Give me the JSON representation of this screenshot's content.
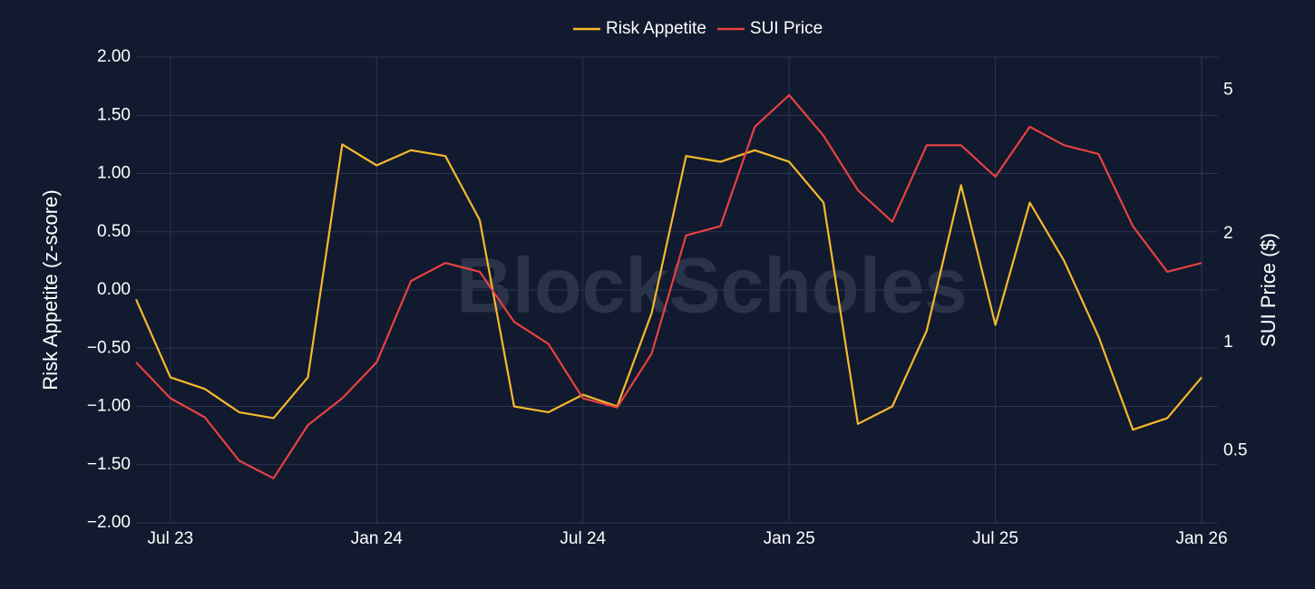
{
  "chart_data": {
    "type": "line",
    "watermark": "BlockScholes",
    "x": [
      "2023-06",
      "2023-07",
      "2023-08",
      "2023-09",
      "2023-10",
      "2023-11",
      "2023-12",
      "2024-01",
      "2024-02",
      "2024-03",
      "2024-04",
      "2024-05",
      "2024-06",
      "2024-07",
      "2024-08",
      "2024-09",
      "2024-10",
      "2024-11",
      "2024-12",
      "2025-01",
      "2025-02",
      "2025-03",
      "2025-04",
      "2025-05",
      "2025-06",
      "2025-07",
      "2025-08",
      "2025-09",
      "2025-10",
      "2025-11",
      "2025-12",
      "2026-01"
    ],
    "series": [
      {
        "name": "Risk Appetite",
        "color": "#f6b92b",
        "axis": "y",
        "values": [
          -0.08,
          -0.75,
          -0.85,
          -1.05,
          -1.1,
          -0.75,
          1.25,
          1.07,
          1.2,
          1.15,
          0.6,
          -1.0,
          -1.05,
          -0.9,
          -1.0,
          -0.2,
          1.15,
          1.1,
          1.2,
          1.1,
          0.75,
          -1.15,
          -1.0,
          -0.35,
          0.9,
          -0.3,
          0.75,
          0.25,
          -0.4,
          -1.2,
          -1.1,
          -0.75
        ]
      },
      {
        "name": "SUI Price",
        "color": "#e84142",
        "axis": "y2",
        "values": [
          0.88,
          0.7,
          0.62,
          0.47,
          0.42,
          0.59,
          0.7,
          0.88,
          1.48,
          1.66,
          1.57,
          1.14,
          0.99,
          0.7,
          0.66,
          0.93,
          1.98,
          2.1,
          3.96,
          4.85,
          3.74,
          2.64,
          2.16,
          3.52,
          3.52,
          2.88,
          3.96,
          3.52,
          3.33,
          2.1,
          1.57,
          1.66
        ]
      }
    ],
    "ylabel": "Risk Appetite (z-score)",
    "y2label": "SUI Price ($)",
    "xlim": [
      "2023-06",
      "2026-01"
    ],
    "xticks": [
      {
        "value": "2023-07",
        "label": "Jul 23"
      },
      {
        "value": "2024-01",
        "label": "Jan 24"
      },
      {
        "value": "2024-07",
        "label": "Jul 24"
      },
      {
        "value": "2025-01",
        "label": "Jan 25"
      },
      {
        "value": "2025-07",
        "label": "Jul 25"
      },
      {
        "value": "2026-01",
        "label": "Jan 26"
      }
    ],
    "ylim": [
      -2,
      2
    ],
    "yticks": [
      {
        "value": -2,
        "label": "−2.00"
      },
      {
        "value": -1.5,
        "label": "−1.50"
      },
      {
        "value": -1,
        "label": "−1.00"
      },
      {
        "value": -0.5,
        "label": "−0.50"
      },
      {
        "value": 0,
        "label": "0.00"
      },
      {
        "value": 0.5,
        "label": "0.50"
      },
      {
        "value": 1,
        "label": "1.00"
      },
      {
        "value": 1.5,
        "label": "1.50"
      },
      {
        "value": 2,
        "label": "2.00"
      }
    ],
    "y2lim": [
      0.316,
      6.18
    ],
    "y2ticks": [
      0.5,
      1,
      2,
      5
    ],
    "y2log": true,
    "grid": true,
    "legend": "top"
  }
}
